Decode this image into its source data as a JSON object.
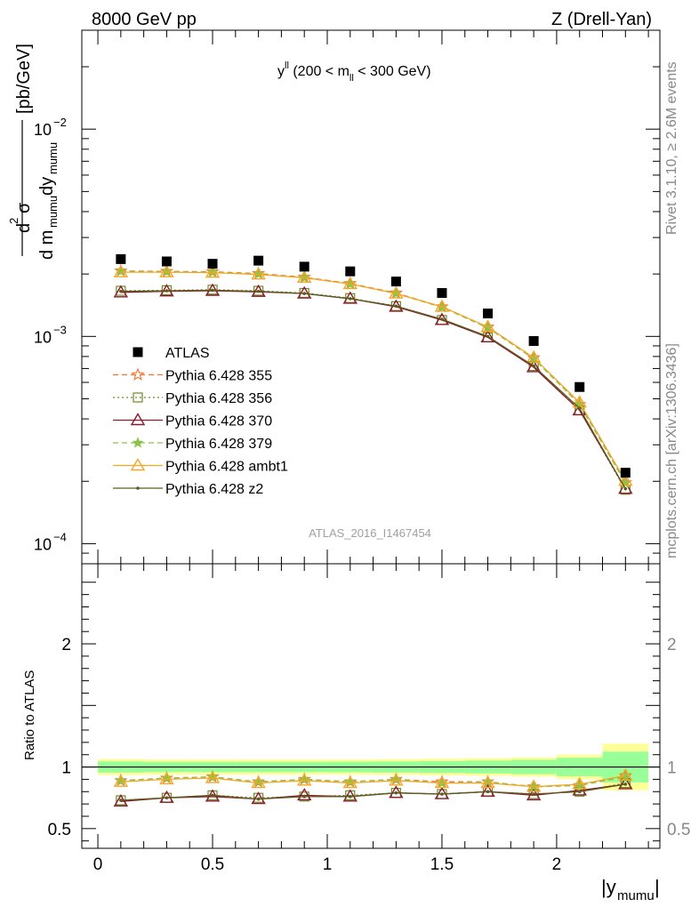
{
  "header": {
    "left": "8000 GeV pp",
    "right": "Z (Drell-Yan)"
  },
  "side_labels": {
    "rivet": "Rivet 3.1.10, ≥ 2.6M events",
    "mcplots": "mcplots.cern.ch [arXiv:1306.3436]"
  },
  "chart_data": [
    {
      "type": "line",
      "panel": "main",
      "title": "y^ll (200 < m_ll < 300 GeV)",
      "ylabel": "d²σ / d m_mumu dy_mumu [pb/GeV]",
      "yscale": "log",
      "xlim": [
        -0.07,
        2.45
      ],
      "ylim": [
        8e-05,
        0.03
      ],
      "yticks": [
        {
          "value": 0.01,
          "base": "10",
          "exp": "−2"
        },
        {
          "value": 0.001,
          "base": "10",
          "exp": "−3"
        },
        {
          "value": 0.0001,
          "base": "10",
          "exp": "−4"
        }
      ],
      "watermark": "ATLAS_2016_I1467454",
      "x": [
        0.1,
        0.3,
        0.5,
        0.7,
        0.9,
        1.1,
        1.3,
        1.5,
        1.7,
        1.9,
        2.1,
        2.3
      ],
      "series": [
        {
          "name": "ATLAS",
          "marker": "square-filled",
          "color": "#000000",
          "line": "none",
          "values": [
            0.00236,
            0.0023,
            0.00224,
            0.00232,
            0.00217,
            0.00206,
            0.00184,
            0.00162,
            0.00129,
            0.00095,
            0.00057,
            0.00022
          ]
        },
        {
          "name": "Pythia 6.428 355",
          "marker": "star-open",
          "color": "#ff6f2a",
          "line": "dashed",
          "values": [
            0.00207,
            0.00206,
            0.00205,
            0.00201,
            0.00193,
            0.0018,
            0.00162,
            0.00139,
            0.00111,
            0.00079,
            0.00047,
            0.000197
          ]
        },
        {
          "name": "Pythia 6.428 356",
          "marker": "square-open",
          "color": "#6b8e23",
          "line": "dotted",
          "values": [
            0.00166,
            0.00167,
            0.00168,
            0.00166,
            0.00162,
            0.00153,
            0.0014,
            0.0012,
            0.00099,
            0.00072,
            0.00044,
            0.000182
          ]
        },
        {
          "name": "Pythia 6.428 370",
          "marker": "triangle-open",
          "color": "#8b1a2c",
          "line": "solid",
          "values": [
            0.00163,
            0.00165,
            0.00166,
            0.00164,
            0.00161,
            0.00152,
            0.00139,
            0.0012,
            0.00099,
            0.00071,
            0.00044,
            0.000184
          ]
        },
        {
          "name": "Pythia 6.428 379",
          "marker": "star-filled",
          "color": "#8bc34a",
          "line": "dashed",
          "values": [
            0.00206,
            0.00205,
            0.00204,
            0.002,
            0.00192,
            0.00179,
            0.00161,
            0.00138,
            0.0011,
            0.00078,
            0.00047,
            0.000196
          ]
        },
        {
          "name": "Pythia 6.428 ambt1",
          "marker": "triangle-open",
          "color": "#f5a623",
          "line": "solid",
          "values": [
            0.00204,
            0.00204,
            0.00203,
            0.00199,
            0.00192,
            0.00179,
            0.00161,
            0.00139,
            0.00111,
            0.00079,
            0.00048,
            0.000201
          ]
        },
        {
          "name": "Pythia 6.428 z2",
          "marker": "dot",
          "color": "#5c5c1e",
          "line": "solid",
          "values": [
            0.00165,
            0.00166,
            0.00167,
            0.00165,
            0.00161,
            0.00152,
            0.0014,
            0.00121,
            0.001,
            0.00072,
            0.00045,
            0.000184
          ]
        }
      ]
    },
    {
      "type": "line",
      "panel": "ratio",
      "ylabel": "Ratio to ATLAS",
      "xlabel": "|y_mumu|",
      "xlim": [
        -0.07,
        2.45
      ],
      "ylim": [
        0.34,
        2.65
      ],
      "xticks": [
        {
          "value": 0,
          "label": "0"
        },
        {
          "value": 0.5,
          "label": "0.5"
        },
        {
          "value": 1,
          "label": "1"
        },
        {
          "value": 1.5,
          "label": "1.5"
        },
        {
          "value": 2,
          "label": "2"
        }
      ],
      "yticks": [
        {
          "value": 0.5,
          "label": "0.5"
        },
        {
          "value": 1,
          "label": "1"
        },
        {
          "value": 2,
          "label": "2"
        }
      ],
      "x": [
        0.1,
        0.3,
        0.5,
        0.7,
        0.9,
        1.1,
        1.3,
        1.5,
        1.7,
        1.9,
        2.1,
        2.3
      ],
      "bands": {
        "color_total": "#ffff99",
        "color_stat": "#99ff99",
        "bins": [
          {
            "lo": 0.0,
            "hi": 0.2,
            "total": 0.065,
            "stat": 0.045
          },
          {
            "lo": 0.2,
            "hi": 0.4,
            "total": 0.062,
            "stat": 0.042
          },
          {
            "lo": 0.4,
            "hi": 0.6,
            "total": 0.062,
            "stat": 0.042
          },
          {
            "lo": 0.6,
            "hi": 0.8,
            "total": 0.062,
            "stat": 0.042
          },
          {
            "lo": 0.8,
            "hi": 1.0,
            "total": 0.062,
            "stat": 0.042
          },
          {
            "lo": 1.0,
            "hi": 1.2,
            "total": 0.062,
            "stat": 0.043
          },
          {
            "lo": 1.2,
            "hi": 1.4,
            "total": 0.064,
            "stat": 0.045
          },
          {
            "lo": 1.4,
            "hi": 1.6,
            "total": 0.068,
            "stat": 0.048
          },
          {
            "lo": 1.6,
            "hi": 1.8,
            "total": 0.072,
            "stat": 0.052
          },
          {
            "lo": 1.8,
            "hi": 2.0,
            "total": 0.078,
            "stat": 0.058
          },
          {
            "lo": 2.0,
            "hi": 2.2,
            "total": 0.1,
            "stat": 0.075
          },
          {
            "lo": 2.2,
            "hi": 2.4,
            "total": 0.19,
            "stat": 0.125
          }
        ]
      },
      "series": [
        {
          "name": "Pythia 6.428 355",
          "color": "#ff6f2a",
          "marker": "star-open",
          "line": "dashed",
          "values": [
            0.89,
            0.91,
            0.92,
            0.88,
            0.9,
            0.88,
            0.9,
            0.88,
            0.88,
            0.84,
            0.85,
            0.93
          ]
        },
        {
          "name": "Pythia 6.428 356",
          "color": "#6b8e23",
          "marker": "square-open",
          "line": "dotted",
          "values": [
            0.73,
            0.75,
            0.77,
            0.75,
            0.76,
            0.77,
            0.79,
            0.78,
            0.8,
            0.78,
            0.8,
            0.87
          ]
        },
        {
          "name": "Pythia 6.428 370",
          "color": "#8b1a2c",
          "marker": "triangle-open",
          "line": "solid",
          "values": [
            0.72,
            0.75,
            0.76,
            0.74,
            0.77,
            0.76,
            0.79,
            0.78,
            0.8,
            0.77,
            0.81,
            0.86
          ]
        },
        {
          "name": "Pythia 6.428 379",
          "color": "#8bc34a",
          "marker": "star-filled",
          "line": "dashed",
          "values": [
            0.89,
            0.91,
            0.92,
            0.88,
            0.9,
            0.88,
            0.9,
            0.87,
            0.88,
            0.84,
            0.85,
            0.92
          ]
        },
        {
          "name": "Pythia 6.428 ambt1",
          "color": "#f5a623",
          "marker": "triangle-open",
          "line": "solid",
          "values": [
            0.88,
            0.9,
            0.91,
            0.87,
            0.89,
            0.87,
            0.89,
            0.87,
            0.87,
            0.84,
            0.86,
            0.93
          ]
        },
        {
          "name": "Pythia 6.428 z2",
          "color": "#5c5c1e",
          "marker": "dot",
          "line": "solid",
          "values": [
            0.73,
            0.75,
            0.77,
            0.74,
            0.76,
            0.76,
            0.79,
            0.78,
            0.8,
            0.78,
            0.8,
            0.86
          ]
        }
      ]
    }
  ]
}
